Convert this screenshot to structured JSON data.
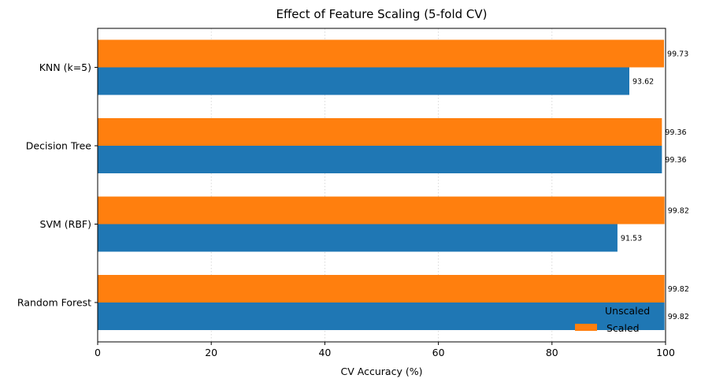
{
  "chart_data": {
    "type": "bar",
    "orientation": "horizontal",
    "title": "Effect of Feature Scaling (5-fold CV)",
    "xlabel": "CV Accuracy (%)",
    "ylabel": "",
    "xlim": [
      0,
      100
    ],
    "xticks": [
      0,
      20,
      40,
      60,
      80,
      100
    ],
    "grid": "x, dotted",
    "categories": [
      "Random Forest",
      "SVM (RBF)",
      "Decision Tree",
      "KNN (k=5)"
    ],
    "series": [
      {
        "name": "Unscaled",
        "color": "#1f77b4",
        "values": [
          99.82,
          91.53,
          99.36,
          93.62
        ]
      },
      {
        "name": "Scaled",
        "color": "#ff7f0e",
        "values": [
          99.82,
          99.82,
          99.36,
          99.73
        ]
      }
    ],
    "legend": {
      "placement": "lower right",
      "frame": false,
      "entries": [
        "Unscaled",
        "Scaled"
      ]
    }
  }
}
